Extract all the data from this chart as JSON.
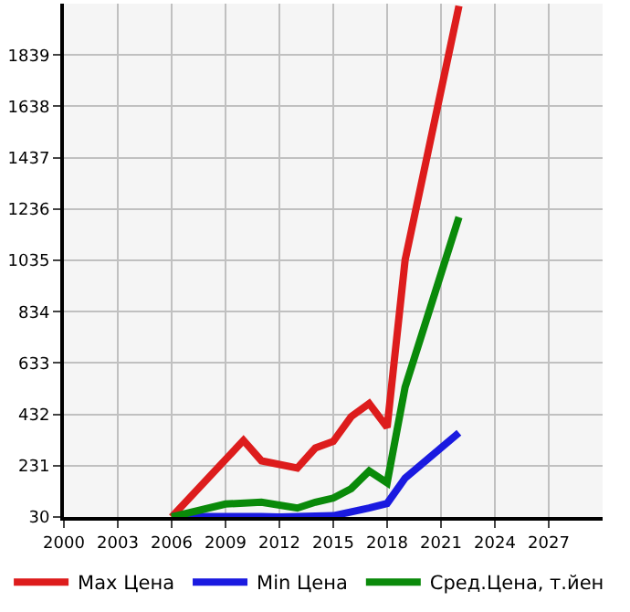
{
  "chart_data": {
    "type": "line",
    "x": [
      2006,
      2010,
      2011,
      2013,
      2014,
      2015,
      2016,
      2017,
      2018,
      2019,
      2022
    ],
    "series": [
      {
        "name": "Max Цена",
        "color": "#dd1c1c",
        "values": [
          30,
          330,
          250,
          222,
          300,
          326,
          423,
          474,
          381,
          1035,
          2031
        ]
      },
      {
        "name": "Min Цена",
        "color": "#1a1ae0",
        "x": [
          2006,
          2011,
          2012,
          2015,
          2017,
          2018,
          2019,
          2022
        ],
        "values": [
          32,
          32,
          30,
          35,
          65,
          83,
          182,
          360
        ]
      },
      {
        "name": "Сред.Цена, т.йен",
        "color": "#0a8a0a",
        "x": [
          2006,
          2009,
          2011,
          2013,
          2014,
          2015,
          2016,
          2017,
          2018,
          2019,
          2022
        ],
        "values": [
          30,
          81,
          88,
          65,
          88,
          104,
          141,
          210,
          164,
          538,
          1204
        ]
      }
    ],
    "xlim": [
      2000,
      2030
    ],
    "xticks": [
      2000,
      2003,
      2006,
      2009,
      2012,
      2015,
      2018,
      2021,
      2024,
      2027
    ],
    "ylim": [
      30,
      2040
    ],
    "yticks": [
      30,
      231,
      432,
      633,
      834,
      1035,
      1236,
      1437,
      1638,
      1839
    ],
    "grid": true,
    "legend": "bottom",
    "marker": "none",
    "line_style": "solid"
  }
}
